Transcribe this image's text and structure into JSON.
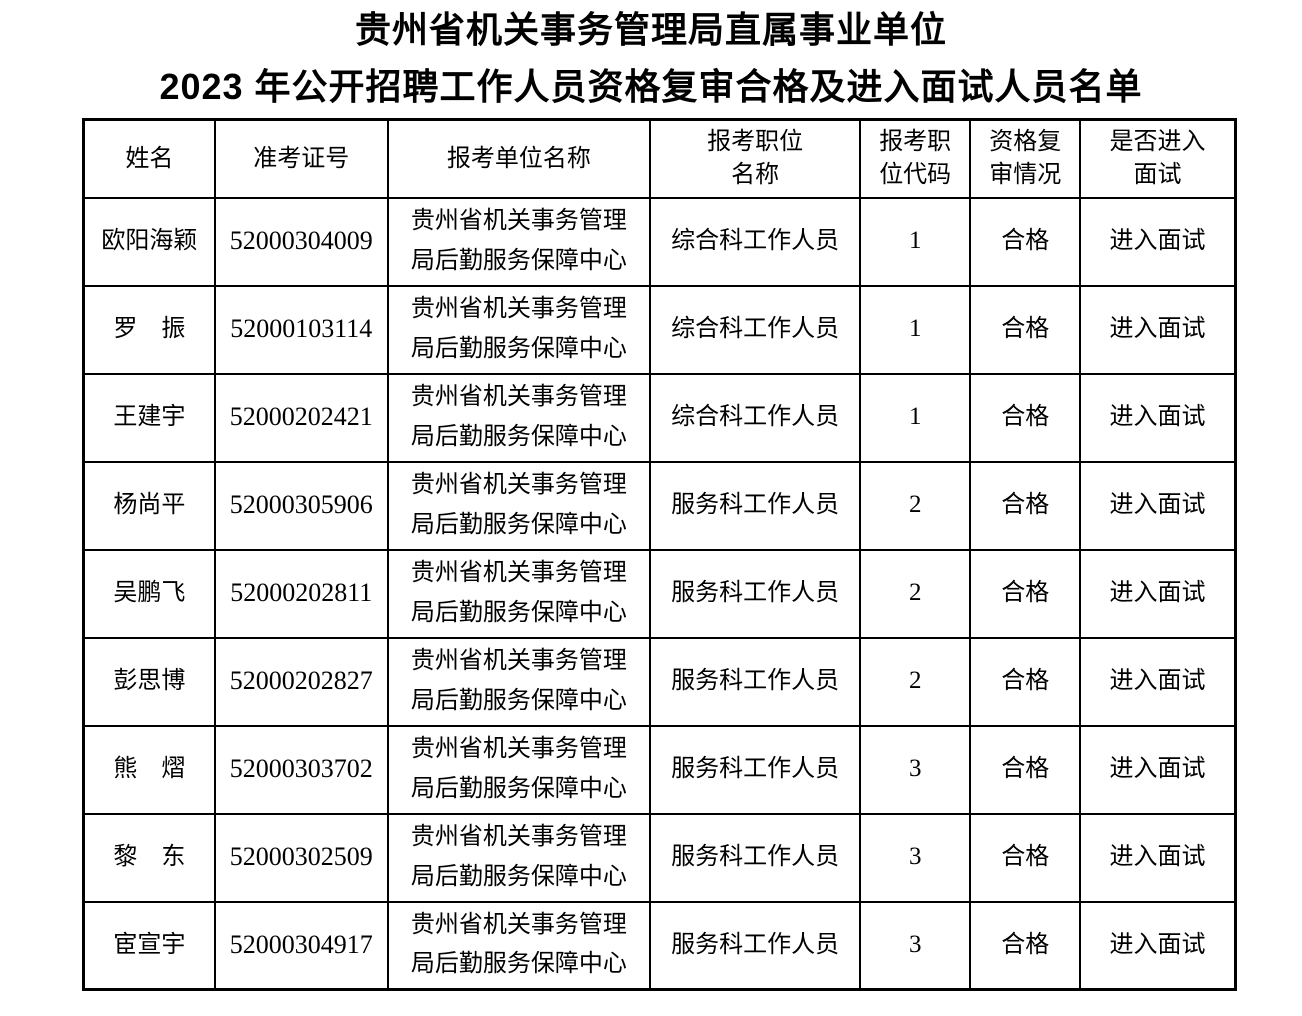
{
  "title": {
    "line1": "贵州省机关事务管理局直属事业单位",
    "line2": "2023 年公开招聘工作人员资格复审合格及进入面试人员名单"
  },
  "table": {
    "columns": [
      {
        "key": "name",
        "label": "姓名"
      },
      {
        "key": "ticket",
        "label": "准考证号"
      },
      {
        "key": "unit",
        "label": "报考单位名称"
      },
      {
        "key": "position",
        "label": "报考职位\n名称"
      },
      {
        "key": "code",
        "label": "报考职\n位代码"
      },
      {
        "key": "review",
        "label": "资格复\n审情况"
      },
      {
        "key": "interview",
        "label": "是否进入\n面试"
      }
    ],
    "rows": [
      {
        "name": "欧阳海颖",
        "ticket": "52000304009",
        "unit": "贵州省机关事务管理\n局后勤服务保障中心",
        "position": "综合科工作人员",
        "code": "1",
        "review": "合格",
        "interview": "进入面试"
      },
      {
        "name": "罗　振",
        "ticket": "52000103114",
        "unit": "贵州省机关事务管理\n局后勤服务保障中心",
        "position": "综合科工作人员",
        "code": "1",
        "review": "合格",
        "interview": "进入面试"
      },
      {
        "name": "王建宇",
        "ticket": "52000202421",
        "unit": "贵州省机关事务管理\n局后勤服务保障中心",
        "position": "综合科工作人员",
        "code": "1",
        "review": "合格",
        "interview": "进入面试"
      },
      {
        "name": "杨尚平",
        "ticket": "52000305906",
        "unit": "贵州省机关事务管理\n局后勤服务保障中心",
        "position": "服务科工作人员",
        "code": "2",
        "review": "合格",
        "interview": "进入面试"
      },
      {
        "name": "吴鹏飞",
        "ticket": "52000202811",
        "unit": "贵州省机关事务管理\n局后勤服务保障中心",
        "position": "服务科工作人员",
        "code": "2",
        "review": "合格",
        "interview": "进入面试"
      },
      {
        "name": "彭思博",
        "ticket": "52000202827",
        "unit": "贵州省机关事务管理\n局后勤服务保障中心",
        "position": "服务科工作人员",
        "code": "2",
        "review": "合格",
        "interview": "进入面试"
      },
      {
        "name": "熊　熠",
        "ticket": "52000303702",
        "unit": "贵州省机关事务管理\n局后勤服务保障中心",
        "position": "服务科工作人员",
        "code": "3",
        "review": "合格",
        "interview": "进入面试"
      },
      {
        "name": "黎　东",
        "ticket": "52000302509",
        "unit": "贵州省机关事务管理\n局后勤服务保障中心",
        "position": "服务科工作人员",
        "code": "3",
        "review": "合格",
        "interview": "进入面试"
      },
      {
        "name": "宦宣宇",
        "ticket": "52000304917",
        "unit": "贵州省机关事务管理\n局后勤服务保障中心",
        "position": "服务科工作人员",
        "code": "3",
        "review": "合格",
        "interview": "进入面试"
      }
    ]
  }
}
